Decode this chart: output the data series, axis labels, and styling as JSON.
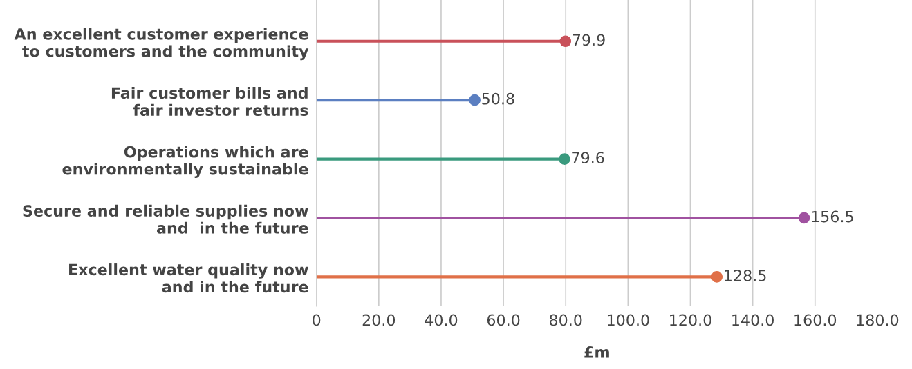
{
  "chart_data": {
    "type": "lollipop",
    "orientation": "horizontal",
    "xlabel": "£m",
    "categories": [
      "An excellent customer experience\nto customers and the community",
      "Fair customer bills and\nfair investor returns",
      "Operations which are\nenvironmentally sustainable",
      "Secure and reliable supplies now\nand  in the future",
      "Excellent water quality now\nand in the future"
    ],
    "values": [
      79.9,
      50.8,
      79.6,
      156.5,
      128.5
    ],
    "colors": [
      "#c9515a",
      "#5b7fc1",
      "#3a9a7e",
      "#a052a0",
      "#e07048"
    ],
    "xlim": [
      0,
      180
    ],
    "xticks": [
      0,
      {
        "value": 20,
        "label": "20.0"
      },
      {
        "value": 40,
        "label": "40.0"
      },
      {
        "value": 60,
        "label": "60.0"
      },
      {
        "value": 80,
        "label": "80.0"
      },
      {
        "value": 100,
        "label": "100.0"
      },
      {
        "value": 120,
        "label": "120.0"
      },
      {
        "value": 140,
        "label": "140.0"
      },
      {
        "value": 160,
        "label": "160.0"
      },
      {
        "value": 180,
        "label": "180.0"
      }
    ],
    "grid": "x",
    "data_labels": true,
    "marker": "circle"
  }
}
